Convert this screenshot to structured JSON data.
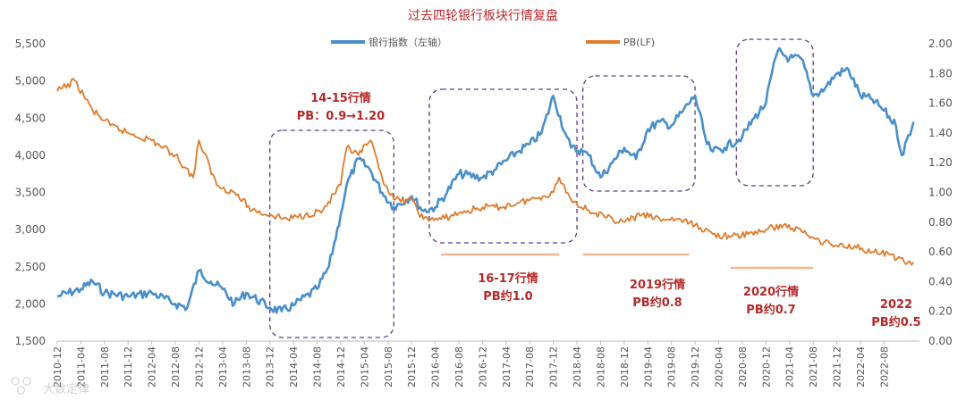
{
  "chart_data": {
    "type": "line",
    "title": "过去四轮银行板块行情复盘",
    "y_left": {
      "min": 1500,
      "max": 5500,
      "ticks": [
        "1,500",
        "2,000",
        "2,500",
        "3,000",
        "3,500",
        "4,000",
        "4,500",
        "5,000",
        "5,500"
      ]
    },
    "y_right": {
      "min": 0,
      "max": 2.0,
      "ticks": [
        "0.00",
        "0.20",
        "0.40",
        "0.60",
        "0.80",
        "1.00",
        "1.20",
        "1.40",
        "1.60",
        "1.80",
        "2.00"
      ]
    },
    "x_range": [
      "2010-12",
      "2023-02"
    ],
    "x_ticks": [
      "2010-12",
      "2011-04",
      "2011-08",
      "2011-12",
      "2012-04",
      "2012-08",
      "2012-12",
      "2013-04",
      "2013-08",
      "2013-12",
      "2014-04",
      "2014-08",
      "2014-12",
      "2015-04",
      "2015-08",
      "2015-12",
      "2016-04",
      "2016-08",
      "2016-12",
      "2017-04",
      "2017-08",
      "2017-12",
      "2018-04",
      "2018-08",
      "2018-12",
      "2019-04",
      "2019-08",
      "2019-12",
      "2020-04",
      "2020-08",
      "2020-12",
      "2021-04",
      "2021-08",
      "2021-12",
      "2022-04",
      "2022-08"
    ],
    "series": [
      {
        "name": "银行指数（左轴）",
        "axis": "left",
        "color": "#4a8fca",
        "x": [
          "2010-12",
          "2011-04",
          "2011-06",
          "2011-08",
          "2011-12",
          "2012-04",
          "2012-08",
          "2012-10",
          "2012-12",
          "2013-02",
          "2013-04",
          "2013-06",
          "2013-08",
          "2013-12",
          "2014-02",
          "2014-04",
          "2014-08",
          "2014-10",
          "2014-12",
          "2015-01",
          "2015-03",
          "2015-05",
          "2015-07",
          "2015-09",
          "2015-12",
          "2016-02",
          "2016-04",
          "2016-06",
          "2016-08",
          "2016-12",
          "2017-02",
          "2017-06",
          "2017-08",
          "2017-10",
          "2017-12",
          "2018-02",
          "2018-03",
          "2018-05",
          "2018-06",
          "2018-08",
          "2018-10",
          "2018-12",
          "2019-02",
          "2019-04",
          "2019-06",
          "2019-08",
          "2019-10",
          "2019-12",
          "2020-02",
          "2020-03",
          "2020-05",
          "2020-08",
          "2020-10",
          "2020-12",
          "2021-01",
          "2021-02",
          "2021-04",
          "2021-06",
          "2021-08",
          "2021-10",
          "2021-12",
          "2022-02",
          "2022-04",
          "2022-06",
          "2022-08",
          "2022-10",
          "2022-11",
          "2023-01"
        ],
        "values": [
          2100,
          2200,
          2300,
          2150,
          2100,
          2150,
          2000,
          1950,
          2450,
          2300,
          2200,
          2000,
          2150,
          1950,
          1900,
          1980,
          2200,
          2500,
          3200,
          3600,
          3950,
          3800,
          3500,
          3300,
          3450,
          3250,
          3300,
          3500,
          3750,
          3700,
          3800,
          4050,
          4150,
          4300,
          4800,
          4300,
          4100,
          4050,
          4000,
          3700,
          3900,
          4100,
          3950,
          4350,
          4450,
          4400,
          4600,
          4800,
          4150,
          4050,
          4100,
          4250,
          4500,
          4700,
          5100,
          5400,
          5300,
          5300,
          4800,
          4900,
          5100,
          5150,
          4800,
          4750,
          4600,
          4400,
          4000,
          4450
        ]
      },
      {
        "name": "PB(LF)",
        "axis": "right",
        "color": "#e07b2c",
        "x": [
          "2010-12",
          "2011-03",
          "2011-06",
          "2011-09",
          "2011-12",
          "2012-04",
          "2012-08",
          "2012-11",
          "2012-12",
          "2013-03",
          "2013-06",
          "2013-09",
          "2013-12",
          "2014-03",
          "2014-06",
          "2014-09",
          "2014-12",
          "2015-01",
          "2015-03",
          "2015-05",
          "2015-07",
          "2015-09",
          "2015-12",
          "2016-02",
          "2016-05",
          "2016-08",
          "2016-12",
          "2017-03",
          "2017-06",
          "2017-09",
          "2017-12",
          "2018-01",
          "2018-03",
          "2018-06",
          "2018-09",
          "2018-12",
          "2019-03",
          "2019-06",
          "2019-09",
          "2019-12",
          "2020-03",
          "2020-06",
          "2020-09",
          "2020-12",
          "2021-03",
          "2021-06",
          "2021-09",
          "2021-12",
          "2022-03",
          "2022-06",
          "2022-09",
          "2022-12",
          "2023-01"
        ],
        "values": [
          1.68,
          1.75,
          1.55,
          1.45,
          1.4,
          1.35,
          1.25,
          1.1,
          1.35,
          1.05,
          1.0,
          0.88,
          0.85,
          0.82,
          0.85,
          0.88,
          1.05,
          1.3,
          1.25,
          1.35,
          1.1,
          0.95,
          0.95,
          0.82,
          0.82,
          0.86,
          0.9,
          0.9,
          0.93,
          0.96,
          1.0,
          1.1,
          0.95,
          0.88,
          0.83,
          0.8,
          0.85,
          0.82,
          0.82,
          0.78,
          0.72,
          0.7,
          0.72,
          0.75,
          0.78,
          0.74,
          0.68,
          0.64,
          0.64,
          0.6,
          0.58,
          0.53,
          0.53
        ]
      }
    ],
    "annotations": [
      {
        "lines": [
          "14-15行情",
          "PB：0.9→1.20"
        ]
      },
      {
        "lines": [
          "16-17行情",
          "PB约1.0"
        ]
      },
      {
        "lines": [
          "2019行情",
          "PB约0.8"
        ]
      },
      {
        "lines": [
          "2020行情",
          "PB约0.7"
        ]
      },
      {
        "lines": [
          "2022",
          "PB约0.5"
        ]
      }
    ],
    "highlight_boxes": [
      [
        "2013-12",
        "2015-09"
      ],
      [
        "2016-03",
        "2018-04"
      ],
      [
        "2018-05",
        "2019-12"
      ],
      [
        "2020-07",
        "2021-08"
      ]
    ],
    "watermark": "大数定律"
  }
}
